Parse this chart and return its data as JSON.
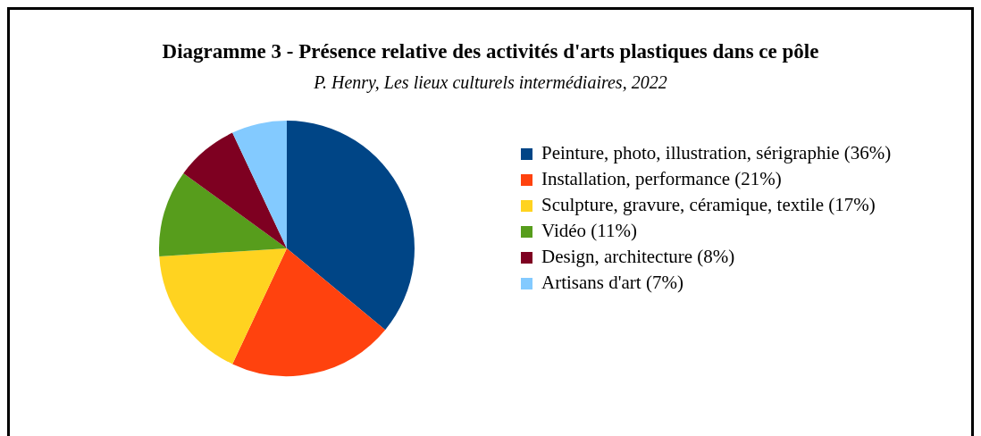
{
  "chart_data": {
    "type": "pie",
    "title": "Diagramme 3 - Présence relative des activités d'arts plastiques dans ce pôle",
    "subtitle": "P. Henry, Les lieux culturels intermédiaires, 2022",
    "categories": [
      "Peinture, photo, illustration, sérigraphie (36%)",
      "Installation,  performance (21%)",
      "Sculpture, gravure, céramique, textile (17%)",
      "Vidéo (11%)",
      "Design, architecture (8%)",
      "Artisans d'art (7%)"
    ],
    "values": [
      36,
      21,
      17,
      11,
      8,
      7
    ],
    "colors": [
      "#004586",
      "#ff420e",
      "#ffd320",
      "#579d1c",
      "#7e0021",
      "#83caff"
    ],
    "legend": "right"
  }
}
